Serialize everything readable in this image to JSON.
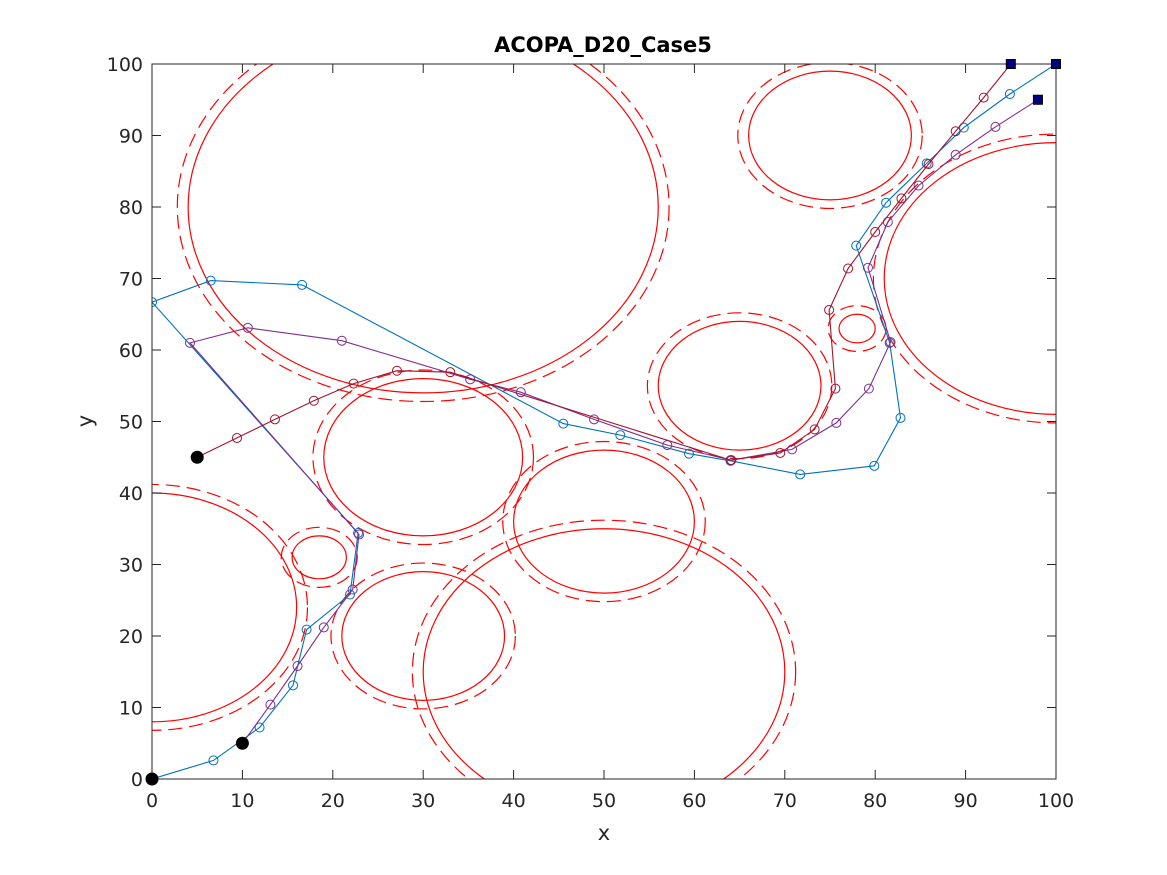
{
  "chart_data": {
    "type": "line",
    "title": "ACOPA_D20_Case5",
    "xlabel": "x",
    "ylabel": "y",
    "xlim": [
      0,
      100
    ],
    "ylim": [
      0,
      100
    ],
    "xticks": [
      0,
      10,
      20,
      30,
      40,
      50,
      60,
      70,
      80,
      90,
      100
    ],
    "yticks": [
      0,
      10,
      20,
      30,
      40,
      50,
      60,
      70,
      80,
      90,
      100
    ],
    "grid": false,
    "colors": {
      "obstacle": "#ff0000",
      "marker_fill": "#000000",
      "goal_fill": "#00007f"
    },
    "obstacles": [
      {
        "cx": 30,
        "cy": 80,
        "r": 26
      },
      {
        "cx": 75,
        "cy": 90,
        "r": 9
      },
      {
        "cx": 100,
        "cy": 70,
        "r": 19
      },
      {
        "cx": 65,
        "cy": 55,
        "r": 9
      },
      {
        "cx": 78,
        "cy": 63,
        "r": 2
      },
      {
        "cx": 30,
        "cy": 45,
        "r": 11
      },
      {
        "cx": 50,
        "cy": 36,
        "r": 10
      },
      {
        "cx": 50,
        "cy": 15,
        "r": 20
      },
      {
        "cx": 30,
        "cy": 20,
        "r": 9
      },
      {
        "cx": 18.5,
        "cy": 31,
        "r": 3
      },
      {
        "cx": 0,
        "cy": 24,
        "r": 16
      }
    ],
    "series": [
      {
        "color": "#0072bd",
        "points": [
          [
            0,
            0
          ],
          [
            6.8,
            2.6
          ],
          [
            11.9,
            7.2
          ],
          [
            15.6,
            13.1
          ],
          [
            17.1,
            20.9
          ],
          [
            21.9,
            25.8
          ],
          [
            22.8,
            34.4
          ],
          [
            0,
            66.7
          ],
          [
            6.5,
            69.7
          ],
          [
            16.6,
            69.1
          ],
          [
            45.5,
            49.7
          ],
          [
            51.8,
            48.1
          ],
          [
            59.4,
            45.5
          ],
          [
            64.0,
            44.5
          ],
          [
            71.7,
            42.6
          ],
          [
            79.9,
            43.8
          ],
          [
            82.8,
            50.5
          ],
          [
            81.6,
            61.0
          ],
          [
            77.9,
            74.6
          ],
          [
            81.2,
            80.6
          ],
          [
            85.7,
            86.1
          ],
          [
            89.8,
            91.1
          ],
          [
            94.9,
            95.8
          ],
          [
            100,
            100
          ]
        ]
      },
      {
        "color": "#7e2f8e",
        "points": [
          [
            10,
            5
          ],
          [
            13.1,
            10.4
          ],
          [
            16.1,
            15.8
          ],
          [
            19.0,
            21.2
          ],
          [
            22.2,
            26.5
          ],
          [
            22.9,
            34.2
          ],
          [
            4.2,
            61.0
          ],
          [
            10.6,
            63.1
          ],
          [
            21.0,
            61.3
          ],
          [
            35.2,
            55.9
          ],
          [
            40.8,
            54.1
          ],
          [
            48.9,
            50.3
          ],
          [
            57.0,
            46.7
          ],
          [
            64.1,
            44.6
          ],
          [
            70.8,
            46.1
          ],
          [
            75.7,
            49.8
          ],
          [
            79.3,
            54.6
          ],
          [
            81.7,
            61.1
          ],
          [
            79.2,
            71.5
          ],
          [
            81.4,
            77.9
          ],
          [
            84.8,
            83.0
          ],
          [
            88.9,
            87.3
          ],
          [
            93.3,
            91.2
          ],
          [
            98,
            95
          ]
        ]
      },
      {
        "color": "#a2142f",
        "points": [
          [
            5,
            45
          ],
          [
            9.4,
            47.7
          ],
          [
            13.6,
            50.3
          ],
          [
            17.9,
            52.9
          ],
          [
            22.3,
            55.3
          ],
          [
            27.1,
            57.1
          ],
          [
            33.0,
            56.9
          ],
          [
            64.0,
            44.6
          ],
          [
            69.5,
            45.6
          ],
          [
            73.3,
            48.9
          ],
          [
            75.6,
            54.6
          ],
          [
            74.9,
            65.6
          ],
          [
            77.0,
            71.4
          ],
          [
            80.0,
            76.5
          ],
          [
            82.9,
            81.2
          ],
          [
            85.9,
            86.0
          ],
          [
            88.9,
            90.6
          ],
          [
            92.0,
            95.3
          ],
          [
            95,
            100
          ]
        ]
      }
    ],
    "start_points": [
      [
        0,
        0
      ],
      [
        10,
        5
      ],
      [
        5,
        45
      ]
    ],
    "goal_points": [
      [
        100,
        100
      ],
      [
        98,
        95
      ],
      [
        95,
        100
      ]
    ]
  }
}
